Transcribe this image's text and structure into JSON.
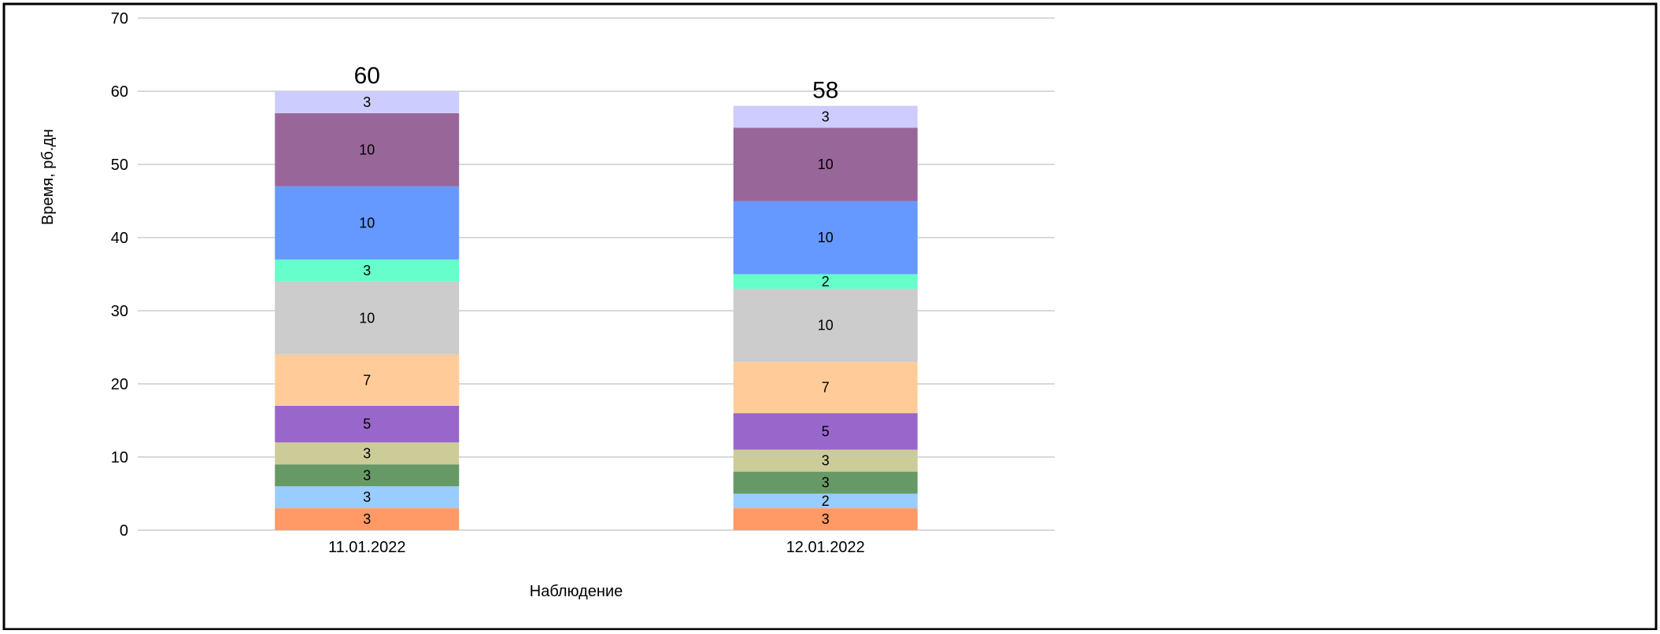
{
  "chart_data": {
    "type": "bar",
    "stacked": true,
    "title": "",
    "xlabel": "Наблюдение",
    "ylabel": "Время, рб.дн",
    "ylim": [
      0,
      70
    ],
    "yticks": [
      0,
      10,
      20,
      30,
      40,
      50,
      60,
      70
    ],
    "grid": true,
    "legend": "none",
    "categories": [
      "11.01.2022",
      "12.01.2022"
    ],
    "totals": [
      60,
      58
    ],
    "series": [
      {
        "values": [
          3,
          3
        ],
        "color": "#FF9966"
      },
      {
        "values": [
          3,
          2
        ],
        "color": "#99CCFF"
      },
      {
        "values": [
          3,
          3
        ],
        "color": "#669966"
      },
      {
        "values": [
          3,
          3
        ],
        "color": "#CCCC99"
      },
      {
        "values": [
          5,
          5
        ],
        "color": "#9966CC"
      },
      {
        "values": [
          7,
          7
        ],
        "color": "#FFCC99"
      },
      {
        "values": [
          10,
          10
        ],
        "color": "#CCCCCC"
      },
      {
        "values": [
          3,
          2
        ],
        "color": "#66FFCC"
      },
      {
        "values": [
          10,
          10
        ],
        "color": "#6699FF"
      },
      {
        "values": [
          10,
          10
        ],
        "color": "#996699"
      },
      {
        "values": [
          3,
          3
        ],
        "color": "#CCCCFF"
      }
    ]
  }
}
